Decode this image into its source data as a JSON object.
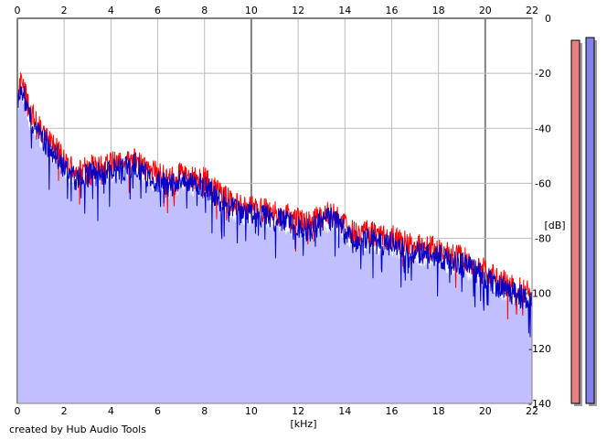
{
  "chart_data": {
    "type": "area",
    "xlabel": "[kHz]",
    "ylabel": "[dB]",
    "xlim": [
      0,
      22
    ],
    "ylim": [
      -140,
      0
    ],
    "x_ticks": [
      "0",
      "2",
      "4",
      "6",
      "8",
      "10",
      "12",
      "14",
      "16",
      "18",
      "20",
      "22"
    ],
    "y_ticks": [
      "0",
      "-20",
      "-40",
      "-60",
      "-80",
      "-100",
      "-120",
      "-140"
    ],
    "grid": true,
    "series": [
      {
        "x": [
          0,
          0.2,
          0.5,
          1,
          1.5,
          2,
          2.5,
          3,
          3.5,
          4,
          4.5,
          5,
          5.5,
          6,
          6.5,
          7,
          7.5,
          8,
          8.5,
          9,
          9.5,
          10,
          10.5,
          11,
          11.5,
          12,
          12.5,
          13,
          13.5,
          14,
          14.5,
          15,
          15.5,
          16,
          16.5,
          17,
          17.5,
          18,
          18.5,
          19,
          19.5,
          20,
          20.5,
          21,
          21.5,
          22
        ],
        "values": [
          -30,
          -24,
          -35,
          -42,
          -47,
          -53,
          -58,
          -55,
          -56,
          -54,
          -54,
          -52,
          -56,
          -58,
          -60,
          -58,
          -59,
          -60,
          -64,
          -67,
          -70,
          -70,
          -71,
          -72,
          -73,
          -75,
          -76,
          -73,
          -72,
          -77,
          -80,
          -79,
          -81,
          -81,
          -83,
          -84,
          -85,
          -85,
          -88,
          -88,
          -91,
          -93,
          -96,
          -98,
          -100,
          -102
        ]
      }
    ],
    "legend": [],
    "level_meter": {
      "left_db": -8,
      "right_db": -7
    }
  },
  "colors": {
    "fill": "#c0c0ff",
    "left_channel": "#ff0000",
    "right_channel": "#0000c8",
    "grid_minor": "#bbbbbb",
    "grid_major": "#808080",
    "meter_left": "#e88080",
    "meter_right": "#8080e8"
  },
  "footer": "created by Hub Audio Tools"
}
